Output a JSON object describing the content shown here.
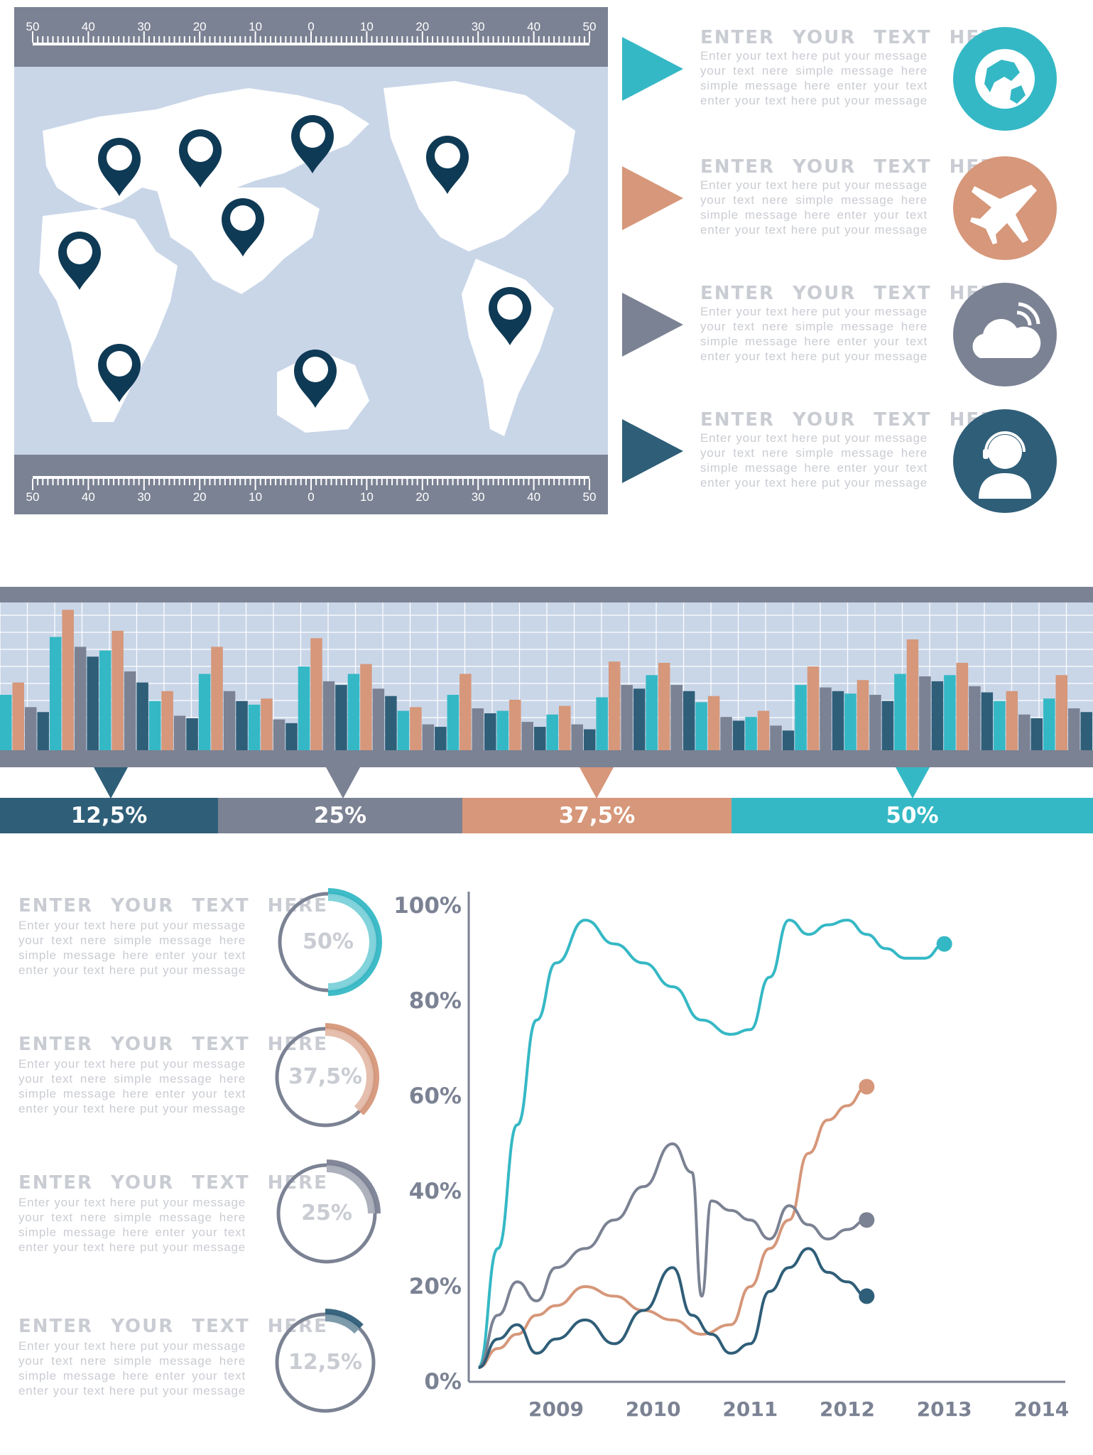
{
  "colors": {
    "teal": "#35b8c5",
    "salmon": "#d6977a",
    "gray": "#7b8293",
    "navy": "#2f5e78",
    "dark_pin": "#0f3a55",
    "map_bg": "#c9d6e8",
    "text_light": "#c9ccd2"
  },
  "map": {
    "ruler_top_labels": [
      "50",
      "40",
      "30",
      "20",
      "10",
      "0",
      "10",
      "20",
      "30",
      "40",
      "50"
    ],
    "ruler_bottom_labels": [
      "50",
      "40",
      "30",
      "20",
      "10",
      "0",
      "10",
      "20",
      "30",
      "40",
      "50"
    ]
  },
  "info_cards": [
    {
      "title": "ENTER YOUR TEXT HERE",
      "body": "Enter your text here put your message your text nere simple message here simple message here enter your text enter your text here put your message",
      "icon": "globe-icon",
      "color": "#35b8c5"
    },
    {
      "title": "ENTER YOUR TEXT HERE",
      "body": "Enter your text here put your message your text nere simple message here simple message here enter your text enter your text here put your message",
      "icon": "airplane-icon",
      "color": "#d6977a"
    },
    {
      "title": "ENTER YOUR TEXT HERE",
      "body": "Enter your text here put your message your text nere simple message here simple message here enter your text enter your text here put your message",
      "icon": "cloud-signal-icon",
      "color": "#7b8293"
    },
    {
      "title": "ENTER YOUR TEXT HERE",
      "body": "Enter your text here put your message your text nere simple message here simple message here enter your text enter your text here put your message",
      "icon": "headset-user-icon",
      "color": "#2f5e78"
    }
  ],
  "chart_data": [
    {
      "type": "bar",
      "series_colors": [
        "#35b8c5",
        "#d6977a",
        "#7b8293",
        "#2f5e78"
      ],
      "groups": [
        [
          45,
          55,
          35,
          31
        ],
        [
          92,
          114,
          84,
          76
        ],
        [
          81,
          97,
          64,
          55
        ],
        [
          40,
          48,
          28,
          26
        ],
        [
          62,
          84,
          48,
          40
        ],
        [
          37,
          42,
          25,
          22
        ],
        [
          68,
          91,
          56,
          53
        ],
        [
          62,
          70,
          50,
          44
        ],
        [
          32,
          35,
          21,
          19
        ],
        [
          45,
          62,
          34,
          30
        ],
        [
          32,
          41,
          23,
          19
        ],
        [
          29,
          36,
          21,
          17
        ],
        [
          43,
          72,
          53,
          50
        ],
        [
          61,
          71,
          53,
          48
        ],
        [
          39,
          44,
          27,
          24
        ],
        [
          27,
          32,
          20,
          16
        ],
        [
          53,
          68,
          51,
          48
        ],
        [
          46,
          57,
          45,
          40
        ],
        [
          62,
          90,
          60,
          56
        ],
        [
          61,
          71,
          52,
          47
        ],
        [
          40,
          48,
          29,
          26
        ],
        [
          42,
          61,
          34,
          31
        ]
      ],
      "percent_bars": [
        {
          "label": "12,5%",
          "value": 12.5,
          "color": "#2f5e78"
        },
        {
          "label": "25%",
          "value": 25,
          "color": "#7b8293"
        },
        {
          "label": "37,5%",
          "value": 37.5,
          "color": "#d6977a"
        },
        {
          "label": "50%",
          "value": 50,
          "color": "#35b8c5"
        }
      ]
    },
    {
      "type": "pie",
      "donuts": [
        {
          "label": "50%",
          "value": 50,
          "color": "#35b8c5"
        },
        {
          "label": "37,5%",
          "value": 37.5,
          "color": "#d6977a"
        },
        {
          "label": "25%",
          "value": 25,
          "color": "#7b8293"
        },
        {
          "label": "12,5%",
          "value": 12.5,
          "color": "#2f5e78"
        }
      ]
    },
    {
      "type": "line",
      "xlabel": "",
      "ylabel": "",
      "x_ticks": [
        "2009",
        "2010",
        "2011",
        "2012",
        "2013",
        "2014"
      ],
      "y_ticks": [
        "0%",
        "20%",
        "40%",
        "60%",
        "80%",
        "100%"
      ],
      "xlim": [
        2008.1,
        2014.1
      ],
      "ylim": [
        0,
        100
      ],
      "series": [
        {
          "color": "#35b8c5",
          "points": [
            [
              2008.2,
              3
            ],
            [
              2008.4,
              28
            ],
            [
              2008.6,
              54
            ],
            [
              2008.8,
              76
            ],
            [
              2009.0,
              88
            ],
            [
              2009.3,
              97
            ],
            [
              2009.6,
              92
            ],
            [
              2009.9,
              88
            ],
            [
              2010.2,
              83
            ],
            [
              2010.5,
              76
            ],
            [
              2010.8,
              73
            ],
            [
              2011.0,
              74
            ],
            [
              2011.2,
              85
            ],
            [
              2011.4,
              97
            ],
            [
              2011.6,
              94
            ],
            [
              2011.8,
              96
            ],
            [
              2012.0,
              97
            ],
            [
              2012.2,
              94
            ],
            [
              2012.4,
              91
            ],
            [
              2012.6,
              89
            ],
            [
              2012.8,
              89
            ],
            [
              2013.0,
              92
            ]
          ]
        },
        {
          "color": "#d6977a",
          "points": [
            [
              2008.2,
              3
            ],
            [
              2008.4,
              7
            ],
            [
              2008.6,
              10
            ],
            [
              2008.8,
              14
            ],
            [
              2009.0,
              16
            ],
            [
              2009.3,
              20
            ],
            [
              2009.6,
              18
            ],
            [
              2009.9,
              15
            ],
            [
              2010.2,
              13
            ],
            [
              2010.5,
              10
            ],
            [
              2010.8,
              12
            ],
            [
              2011.0,
              20
            ],
            [
              2011.2,
              28
            ],
            [
              2011.4,
              34
            ],
            [
              2011.6,
              48
            ],
            [
              2011.8,
              55
            ],
            [
              2012.0,
              58
            ],
            [
              2012.2,
              62
            ]
          ]
        },
        {
          "color": "#7b8293",
          "points": [
            [
              2008.2,
              3
            ],
            [
              2008.4,
              14
            ],
            [
              2008.6,
              21
            ],
            [
              2008.8,
              17
            ],
            [
              2009.0,
              24
            ],
            [
              2009.3,
              28
            ],
            [
              2009.6,
              34
            ],
            [
              2009.9,
              41
            ],
            [
              2010.2,
              50
            ],
            [
              2010.4,
              44
            ],
            [
              2010.5,
              18
            ],
            [
              2010.6,
              38
            ],
            [
              2010.8,
              36
            ],
            [
              2011.0,
              34
            ],
            [
              2011.2,
              30
            ],
            [
              2011.4,
              37
            ],
            [
              2011.6,
              33
            ],
            [
              2011.8,
              30
            ],
            [
              2012.0,
              32
            ],
            [
              2012.2,
              34
            ]
          ]
        },
        {
          "color": "#2f5e78",
          "points": [
            [
              2008.2,
              3
            ],
            [
              2008.4,
              9
            ],
            [
              2008.6,
              12
            ],
            [
              2008.8,
              6
            ],
            [
              2009.0,
              9
            ],
            [
              2009.3,
              13
            ],
            [
              2009.6,
              8
            ],
            [
              2009.9,
              15
            ],
            [
              2010.2,
              24
            ],
            [
              2010.4,
              14
            ],
            [
              2010.6,
              10
            ],
            [
              2010.8,
              6
            ],
            [
              2011.0,
              8
            ],
            [
              2011.2,
              19
            ],
            [
              2011.4,
              24
            ],
            [
              2011.6,
              28
            ],
            [
              2011.8,
              23
            ],
            [
              2012.0,
              21
            ],
            [
              2012.2,
              18
            ]
          ]
        }
      ]
    }
  ],
  "left_cards": [
    {
      "title": "ENTER YOUR TEXT HERE",
      "body": "Enter your text here put your message your text nere simple message here simple message here enter your text enter your text here put your message"
    },
    {
      "title": "ENTER YOUR TEXT HERE",
      "body": "Enter your text here put your message your text nere simple message here simple message here enter your text enter your text here put your message"
    },
    {
      "title": "ENTER YOUR TEXT HERE",
      "body": "Enter your text here put your message your text nere simple message here simple message here enter your text enter your text here put your message"
    },
    {
      "title": "ENTER YOUR TEXT HERE",
      "body": "Enter your text here put your message your text nere simple message here simple message here enter your text enter your text here put your message"
    }
  ]
}
